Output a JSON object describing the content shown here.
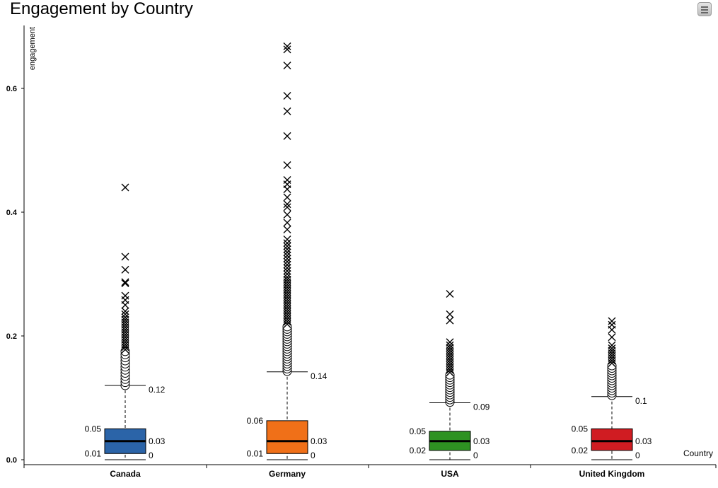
{
  "chart_data": {
    "type": "boxplot",
    "title": "Engagement by Country",
    "xlabel": "Country",
    "ylabel": "engagement",
    "ylim": [
      0,
      0.7
    ],
    "yticks": [
      "0.0",
      "0.2",
      "0.4",
      "0.6"
    ],
    "grid": false,
    "legend": "none",
    "categories": [
      "Canada",
      "Germany",
      "USA",
      "United Kingdom"
    ],
    "boxes": [
      {
        "name": "Canada",
        "color": "#2b64a8",
        "min": 0.0,
        "q1": 0.01,
        "median": 0.03,
        "q3": 0.05,
        "whisker_high": 0.12,
        "labels": {
          "min": "0",
          "q1": "0.01",
          "median": "0.03",
          "q3": "0.05",
          "whisker_high": "0.12"
        },
        "mild_outliers": [
          0.12,
          0.125,
          0.13,
          0.135,
          0.14,
          0.145,
          0.15,
          0.155,
          0.16,
          0.165,
          0.17,
          0.175
        ],
        "extreme_outliers": [
          0.178,
          0.182,
          0.186,
          0.19,
          0.194,
          0.198,
          0.202,
          0.206,
          0.21,
          0.214,
          0.218,
          0.222,
          0.226,
          0.23,
          0.235,
          0.24,
          0.25,
          0.258,
          0.265,
          0.285,
          0.287,
          0.307,
          0.328,
          0.44
        ]
      },
      {
        "name": "Germany",
        "color": "#f07018",
        "min": 0.0,
        "q1": 0.01,
        "median": 0.03,
        "q3": 0.063,
        "whisker_high": 0.142,
        "labels": {
          "min": "0",
          "q1": "0.01",
          "median": "0.03",
          "q3": "0.06",
          "whisker_high": "0.14"
        },
        "mild_outliers": [
          0.143,
          0.147,
          0.151,
          0.155,
          0.159,
          0.163,
          0.167,
          0.171,
          0.175,
          0.179,
          0.183,
          0.187,
          0.191,
          0.195,
          0.199,
          0.203,
          0.207,
          0.211,
          0.215
        ],
        "extreme_outliers": [
          0.219,
          0.223,
          0.227,
          0.231,
          0.235,
          0.239,
          0.243,
          0.247,
          0.251,
          0.255,
          0.259,
          0.263,
          0.267,
          0.271,
          0.275,
          0.279,
          0.283,
          0.287,
          0.291,
          0.295,
          0.3,
          0.305,
          0.31,
          0.315,
          0.32,
          0.325,
          0.33,
          0.335,
          0.34,
          0.345,
          0.35,
          0.356,
          0.372,
          0.383,
          0.396,
          0.408,
          0.413,
          0.424,
          0.437,
          0.445,
          0.452,
          0.476,
          0.523,
          0.563,
          0.588,
          0.637,
          0.663,
          0.668
        ]
      },
      {
        "name": "USA",
        "color": "#2e9222",
        "min": 0.0,
        "q1": 0.015,
        "median": 0.03,
        "q3": 0.046,
        "whisker_high": 0.092,
        "labels": {
          "min": "0",
          "q1": "0.02",
          "median": "0.03",
          "q3": "0.05",
          "whisker_high": "0.09"
        },
        "mild_outliers": [
          0.093,
          0.097,
          0.101,
          0.105,
          0.109,
          0.113,
          0.117,
          0.121,
          0.125,
          0.129,
          0.133,
          0.137
        ],
        "extreme_outliers": [
          0.141,
          0.145,
          0.149,
          0.153,
          0.157,
          0.161,
          0.165,
          0.169,
          0.173,
          0.177,
          0.181,
          0.185,
          0.19,
          0.225,
          0.235,
          0.268
        ]
      },
      {
        "name": "United Kingdom",
        "color": "#d01c22",
        "min": 0.0,
        "q1": 0.015,
        "median": 0.03,
        "q3": 0.05,
        "whisker_high": 0.102,
        "labels": {
          "min": "0",
          "q1": "0.02",
          "median": "0.03",
          "q3": "0.05",
          "whisker_high": "0.1"
        },
        "mild_outliers": [
          0.104,
          0.108,
          0.112,
          0.116,
          0.12,
          0.124,
          0.128,
          0.132,
          0.136,
          0.14,
          0.144,
          0.148,
          0.152
        ],
        "extreme_outliers": [
          0.156,
          0.16,
          0.164,
          0.168,
          0.172,
          0.176,
          0.18,
          0.185,
          0.198,
          0.21,
          0.218,
          0.224
        ]
      }
    ]
  },
  "icons": {
    "menu": "hamburger-menu-icon"
  }
}
